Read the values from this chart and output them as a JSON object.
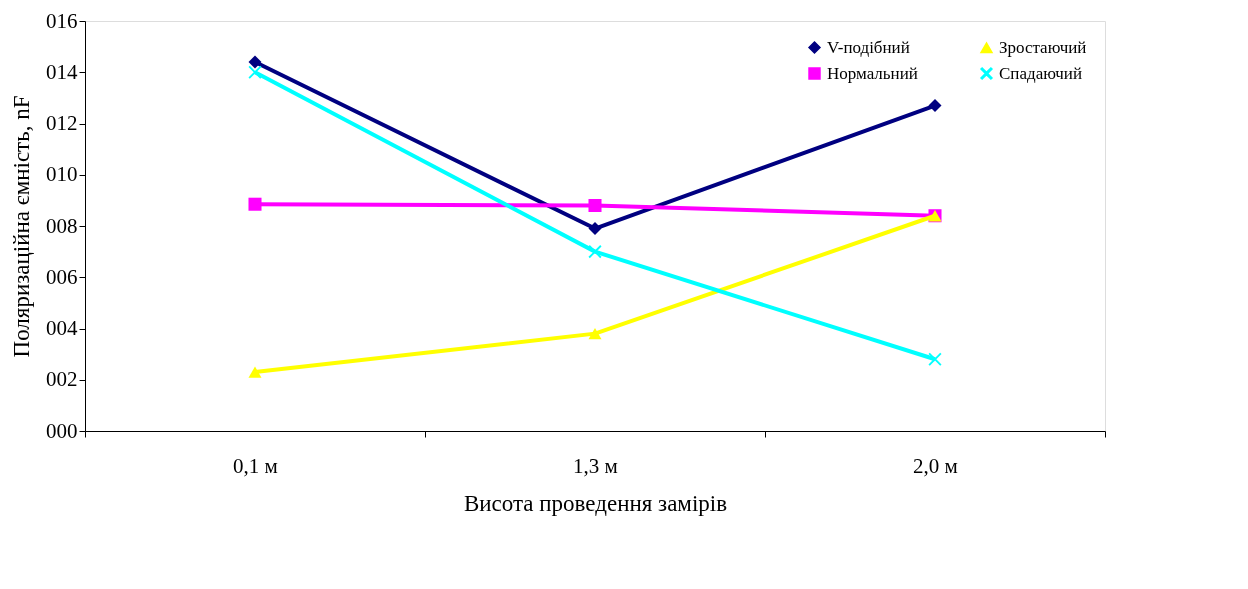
{
  "chart_data": {
    "type": "line",
    "xlabel": "Висота проведення замірів",
    "ylabel": "Поляризаційна ємність, nF",
    "categories": [
      "0,1 м",
      "1,3 м",
      "2,0 м"
    ],
    "series": [
      {
        "name": "V-подібний",
        "color": "#000080",
        "marker": "diamond",
        "values": [
          14.4,
          7.9,
          12.7
        ]
      },
      {
        "name": "Нормальний",
        "color": "#ff00ff",
        "marker": "square",
        "values": [
          8.85,
          8.8,
          8.4
        ]
      },
      {
        "name": "Зростаючий",
        "color": "#ffff00",
        "marker": "triangle",
        "values": [
          2.3,
          3.8,
          8.4
        ]
      },
      {
        "name": "Спадаючий",
        "color": "#00ffff",
        "marker": "cross",
        "values": [
          14.0,
          7.0,
          2.8
        ]
      }
    ],
    "ylim": [
      0,
      16
    ],
    "yticks": [
      {
        "value": 0,
        "label": "000"
      },
      {
        "value": 2,
        "label": "002"
      },
      {
        "value": 4,
        "label": "004"
      },
      {
        "value": 6,
        "label": "006"
      },
      {
        "value": 8,
        "label": "008"
      },
      {
        "value": 10,
        "label": "010"
      },
      {
        "value": 12,
        "label": "012"
      },
      {
        "value": 14,
        "label": "014"
      },
      {
        "value": 16,
        "label": "016"
      }
    ],
    "grid": false,
    "legend": "top right",
    "line_style": "solid"
  }
}
